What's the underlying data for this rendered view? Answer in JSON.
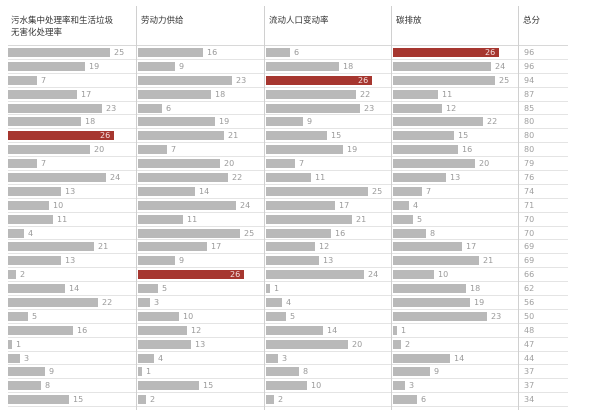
{
  "header": {
    "columns": [
      {
        "label_line1": "污水集中处理率和生活垃圾",
        "label_line2": "无害化处理率"
      },
      {
        "label_line1": "劳动力供给",
        "label_line2": ""
      },
      {
        "label_line1": "流动人口变动率",
        "label_line2": ""
      },
      {
        "label_line1": "碳排放",
        "label_line2": ""
      },
      {
        "label_line1": "总分",
        "label_line2": ""
      }
    ]
  },
  "colors": {
    "bar": "#b9b9b9",
    "highlight": "#a6362f"
  },
  "chart_data": {
    "type": "table",
    "title": "",
    "columns": [
      "污水集中处理率和生活垃圾无害化处理率",
      "劳动力供给",
      "流动人口变动率",
      "碳排放",
      "总分"
    ],
    "max_rank": 26,
    "series": [
      {
        "name": "污水集中处理率和生活垃圾无害化处理率",
        "values": [
          25,
          19,
          7,
          17,
          23,
          18,
          26,
          20,
          7,
          24,
          13,
          10,
          11,
          4,
          21,
          13,
          2,
          14,
          22,
          5,
          16,
          1,
          3,
          9,
          8,
          15
        ]
      },
      {
        "name": "劳动力供给",
        "values": [
          16,
          9,
          23,
          18,
          6,
          19,
          21,
          7,
          20,
          22,
          14,
          24,
          11,
          25,
          17,
          9,
          26,
          5,
          3,
          10,
          12,
          13,
          4,
          1,
          15,
          2
        ]
      },
      {
        "name": "流动人口变动率",
        "values": [
          6,
          18,
          26,
          22,
          23,
          9,
          15,
          19,
          7,
          11,
          25,
          17,
          21,
          16,
          12,
          13,
          24,
          1,
          4,
          5,
          14,
          20,
          3,
          8,
          10,
          2
        ]
      },
      {
        "name": "碳排放",
        "values": [
          26,
          24,
          25,
          11,
          12,
          22,
          15,
          16,
          20,
          13,
          7,
          4,
          5,
          8,
          17,
          21,
          10,
          18,
          19,
          23,
          1,
          2,
          14,
          9,
          3,
          6
        ]
      },
      {
        "name": "总分",
        "values": [
          96,
          96,
          94,
          87,
          85,
          80,
          80,
          80,
          79,
          76,
          74,
          71,
          70,
          70,
          69,
          69,
          66,
          62,
          56,
          50,
          48,
          47,
          44,
          37,
          37,
          34
        ]
      }
    ],
    "highlight_value": 26
  }
}
